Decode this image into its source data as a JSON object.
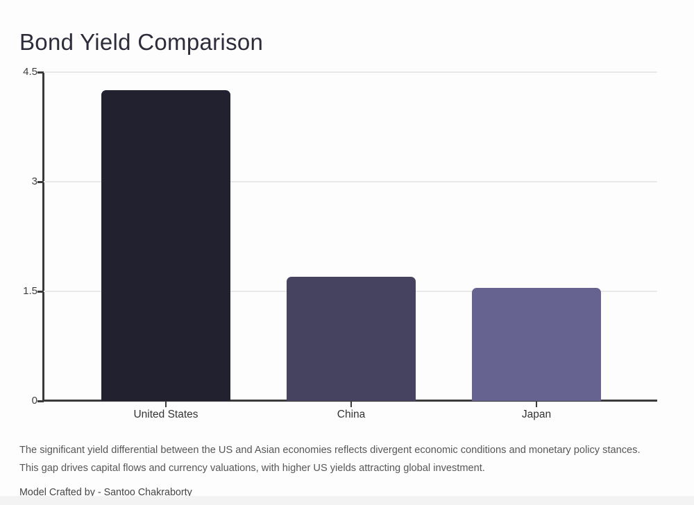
{
  "page": {
    "title": "Bond Yield Comparison",
    "caption": "The significant yield differential between the US and Asian economies reflects divergent economic conditions and monetary policy stances. This gap drives capital flows and currency valuations, with higher US yields attracting global investment.",
    "credit": "Model Crafted by - Santoo Chakraborty"
  },
  "chart_data": {
    "type": "bar",
    "title": "Bond Yield Comparison",
    "categories": [
      "United States",
      "China",
      "Japan"
    ],
    "values": [
      4.25,
      1.7,
      1.55
    ],
    "bar_colors": [
      "#212130",
      "#454360",
      "#666390"
    ],
    "yticks": [
      0,
      1.5,
      3,
      4.5
    ],
    "ytick_labels": [
      "0",
      "1.5",
      "3",
      "4.5"
    ],
    "ylim": [
      0,
      4.5
    ],
    "xlabel": "",
    "ylabel": "",
    "grid": "horizontal-gridlines",
    "legend": "none",
    "axis_color": "#3a3a3a",
    "grid_color": "#e9e9e9",
    "background_color": "#fdfdfd"
  }
}
